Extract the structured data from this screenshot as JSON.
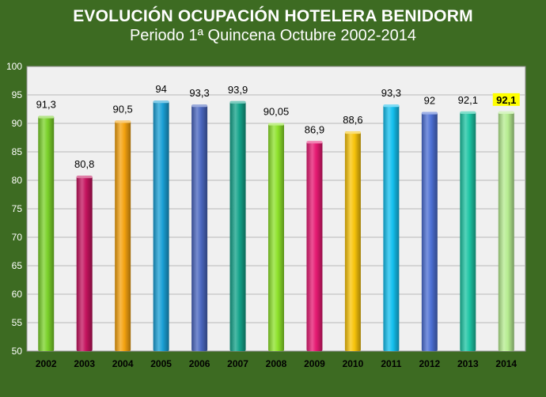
{
  "chart_data": {
    "type": "bar",
    "title": "EVOLUCIÓN OCUPACIÓN HOTELERA BENIDORM",
    "subtitle": "Periodo 1ª Quincena Octubre 2002-2014",
    "categories": [
      "2002",
      "2003",
      "2004",
      "2005",
      "2006",
      "2007",
      "2008",
      "2009",
      "2010",
      "2011",
      "2012",
      "2013",
      "2014"
    ],
    "values": [
      91.3,
      80.8,
      90.5,
      94,
      93.3,
      93.9,
      90.05,
      86.9,
      88.6,
      93.3,
      92,
      92.1,
      92.1
    ],
    "labels": [
      "91,3",
      "80,8",
      "90,5",
      "94",
      "93,3",
      "93,9",
      "90,05",
      "86,9",
      "88,6",
      "93,3",
      "92",
      "92,1",
      "92,1"
    ],
    "bar_colors": [
      "#7bd12a",
      "#c4135e",
      "#f4a20f",
      "#1aa0d6",
      "#4a67c0",
      "#13a38a",
      "#8ee22b",
      "#e61a72",
      "#f8c40a",
      "#14c0ef",
      "#4c6fd4",
      "#1cc4a3",
      "#b6ec90"
    ],
    "highlight": {
      "index": 12,
      "color": "#ffff00"
    },
    "yticks": [
      "100",
      "95",
      "90",
      "85",
      "80",
      "75",
      "70",
      "65",
      "60",
      "55",
      "50"
    ],
    "ylim": [
      50,
      100
    ],
    "grid": true,
    "legend": "none"
  }
}
